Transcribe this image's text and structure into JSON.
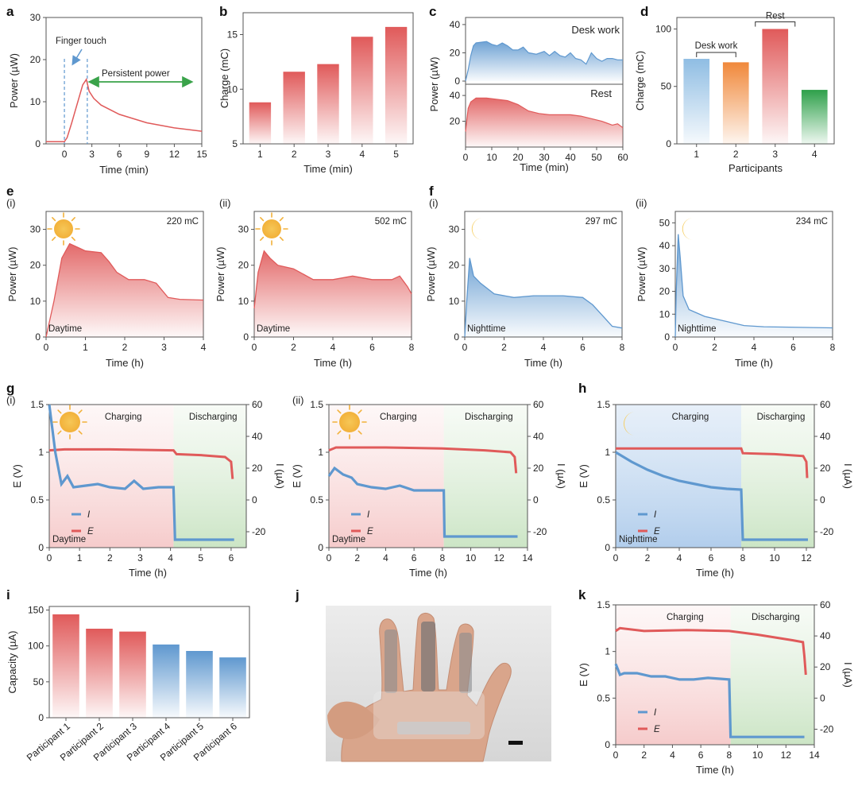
{
  "panels": {
    "a": "a",
    "b": "b",
    "c": "c",
    "d": "d",
    "e": "e",
    "f": "f",
    "g": "g",
    "h": "h",
    "i": "i",
    "j": "j",
    "k": "k",
    "sub_i": "(i)",
    "sub_ii": "(ii)"
  },
  "colors": {
    "red": "#e05a5a",
    "red_light": "#f4c9c9",
    "blue": "#5f98cf",
    "blue_light": "#c6dbef",
    "green_arrow": "#3aa34a",
    "orange": "#f0883a",
    "green_bar": "#2ea04a",
    "charge_bg": "#f8d9d9",
    "discharge_bg": "#d8ebd3",
    "night_bg": "#cfe0f3"
  },
  "chart_data": [
    {
      "id": "a",
      "type": "line",
      "xlabel": "Time (min)",
      "ylabel": "Power (µW)",
      "xlim": [
        -2,
        15
      ],
      "ylim": [
        0,
        30
      ],
      "xticks": [
        0,
        3,
        6,
        9,
        12,
        15
      ],
      "yticks": [
        0,
        10,
        20,
        30
      ],
      "series": [
        {
          "values": [
            [
              -2,
              0.5
            ],
            [
              0,
              0.5
            ],
            [
              0.3,
              1.5
            ],
            [
              0.8,
              5
            ],
            [
              1.2,
              8
            ],
            [
              1.6,
              11
            ],
            [
              2.0,
              14
            ],
            [
              2.4,
              15.3
            ],
            [
              2.7,
              12.5
            ],
            [
              3.2,
              10.8
            ],
            [
              4,
              9.2
            ],
            [
              6,
              7
            ],
            [
              9,
              5
            ],
            [
              12,
              3.8
            ],
            [
              15,
              3
            ]
          ]
        }
      ],
      "annotations": {
        "finger_touch": "Finger touch",
        "persistent_power": "Persistent power"
      },
      "markers_x": [
        0,
        2.5
      ]
    },
    {
      "id": "b",
      "type": "bar",
      "xlabel": "Time (min)",
      "ylabel": "Charge (mC)",
      "categories": [
        "1",
        "2",
        "3",
        "4",
        "5"
      ],
      "values": [
        8.8,
        11.6,
        12.3,
        14.8,
        15.7
      ],
      "ylim": [
        5,
        17
      ],
      "yticks": [
        5,
        10,
        15
      ]
    },
    {
      "id": "c",
      "type": "area",
      "xlabel": "Time (min)",
      "ylabel": "Power (µW)",
      "xlim": [
        0,
        60
      ],
      "xticks": [
        0,
        10,
        20,
        30,
        40,
        50,
        60
      ],
      "top": {
        "label": "Desk work",
        "ylim": [
          0,
          45
        ],
        "yticks": [
          0,
          20,
          40
        ],
        "values": [
          [
            0,
            0
          ],
          [
            1,
            8
          ],
          [
            2,
            18
          ],
          [
            3,
            25
          ],
          [
            4,
            27
          ],
          [
            6,
            27.5
          ],
          [
            8,
            28
          ],
          [
            10,
            26
          ],
          [
            12,
            25
          ],
          [
            14,
            27
          ],
          [
            16,
            25
          ],
          [
            18,
            22
          ],
          [
            20,
            22
          ],
          [
            22,
            24
          ],
          [
            24,
            20
          ],
          [
            27,
            19
          ],
          [
            30,
            21
          ],
          [
            32,
            18
          ],
          [
            34,
            21
          ],
          [
            36,
            18
          ],
          [
            38,
            17
          ],
          [
            40,
            20
          ],
          [
            42,
            16
          ],
          [
            44,
            15
          ],
          [
            46,
            12
          ],
          [
            48,
            20
          ],
          [
            50,
            16
          ],
          [
            52,
            14
          ],
          [
            54,
            16
          ],
          [
            56,
            16
          ],
          [
            58,
            15
          ],
          [
            60,
            15
          ]
        ]
      },
      "bottom": {
        "label": "Rest",
        "ylim": [
          0,
          45
        ],
        "yticks": [
          0,
          20,
          40
        ],
        "values": [
          [
            0,
            12
          ],
          [
            1,
            30
          ],
          [
            2,
            35
          ],
          [
            4,
            38
          ],
          [
            8,
            38
          ],
          [
            12,
            37
          ],
          [
            16,
            36
          ],
          [
            20,
            33
          ],
          [
            24,
            28
          ],
          [
            28,
            26
          ],
          [
            32,
            25
          ],
          [
            36,
            25
          ],
          [
            40,
            25
          ],
          [
            44,
            24
          ],
          [
            48,
            22
          ],
          [
            52,
            20
          ],
          [
            56,
            17
          ],
          [
            58,
            18
          ],
          [
            60,
            15
          ]
        ]
      }
    },
    {
      "id": "d",
      "type": "bar",
      "xlabel": "Participants",
      "ylabel": "Charge (mC)",
      "categories": [
        "1",
        "2",
        "3",
        "4"
      ],
      "values": [
        74,
        71,
        100,
        47
      ],
      "ylim": [
        0,
        110
      ],
      "yticks": [
        0,
        50,
        100
      ],
      "bar_colors": [
        "#9cc7e8",
        "#f0883a",
        "#e05a5a",
        "#2ea04a"
      ],
      "groups": [
        {
          "label": "Desk work",
          "members": [
            0,
            1
          ]
        },
        {
          "label": "Rest",
          "members": [
            2
          ]
        }
      ]
    },
    {
      "id": "e_i",
      "type": "area",
      "xlabel": "Time (h)",
      "ylabel": "Power (µW)",
      "xlim": [
        0,
        4
      ],
      "ylim": [
        0,
        35
      ],
      "xticks": [
        0,
        1,
        2,
        3,
        4
      ],
      "yticks": [
        0,
        10,
        20,
        30
      ],
      "label": "Daytime",
      "total": "220 mC",
      "values": [
        [
          0,
          0
        ],
        [
          0.2,
          10
        ],
        [
          0.4,
          22
        ],
        [
          0.6,
          26
        ],
        [
          0.8,
          25
        ],
        [
          1,
          24
        ],
        [
          1.4,
          23.5
        ],
        [
          1.6,
          21
        ],
        [
          1.8,
          18
        ],
        [
          2.1,
          16
        ],
        [
          2.5,
          16
        ],
        [
          2.8,
          15
        ],
        [
          3.1,
          11
        ],
        [
          3.4,
          10.5
        ],
        [
          4,
          10.3
        ]
      ]
    },
    {
      "id": "e_ii",
      "type": "area",
      "xlabel": "Time (h)",
      "ylabel": "Power (µW)",
      "xlim": [
        0,
        8
      ],
      "ylim": [
        0,
        35
      ],
      "xticks": [
        0,
        2,
        4,
        6,
        8
      ],
      "yticks": [
        0,
        10,
        20,
        30
      ],
      "label": "Daytime",
      "total": "502 mC",
      "values": [
        [
          0,
          8
        ],
        [
          0.2,
          18
        ],
        [
          0.5,
          24
        ],
        [
          0.8,
          22
        ],
        [
          1.2,
          20
        ],
        [
          2,
          19
        ],
        [
          3,
          16
        ],
        [
          4,
          16
        ],
        [
          5,
          17
        ],
        [
          6,
          16
        ],
        [
          7,
          16
        ],
        [
          7.4,
          17
        ],
        [
          7.8,
          14
        ],
        [
          8,
          12
        ]
      ]
    },
    {
      "id": "f_i",
      "type": "area",
      "xlabel": "Time (h)",
      "ylabel": "Power (µW)",
      "xlim": [
        0,
        8
      ],
      "ylim": [
        0,
        35
      ],
      "xticks": [
        0,
        2,
        4,
        6,
        8
      ],
      "yticks": [
        0,
        10,
        20,
        30
      ],
      "label": "Nighttime",
      "total": "297 mC",
      "values": [
        [
          0,
          0
        ],
        [
          0.1,
          10
        ],
        [
          0.25,
          22
        ],
        [
          0.45,
          17
        ],
        [
          0.8,
          15
        ],
        [
          1.5,
          12
        ],
        [
          2.5,
          11
        ],
        [
          3.5,
          11.5
        ],
        [
          5,
          11.5
        ],
        [
          6,
          11
        ],
        [
          6.5,
          9
        ],
        [
          7,
          6
        ],
        [
          7.5,
          3
        ],
        [
          8,
          2.5
        ]
      ]
    },
    {
      "id": "f_ii",
      "type": "area",
      "xlabel": "Time (h)",
      "ylabel": "Power (µW)",
      "xlim": [
        0,
        8
      ],
      "ylim": [
        0,
        55
      ],
      "xticks": [
        0,
        2,
        4,
        6,
        8
      ],
      "yticks": [
        0,
        10,
        20,
        30,
        40,
        50
      ],
      "label": "Nighttime",
      "total": "234 mC",
      "values": [
        [
          0,
          0
        ],
        [
          0.05,
          20
        ],
        [
          0.15,
          45
        ],
        [
          0.25,
          35
        ],
        [
          0.4,
          18
        ],
        [
          0.7,
          12
        ],
        [
          1.5,
          9
        ],
        [
          2.5,
          7
        ],
        [
          3.5,
          5
        ],
        [
          4.5,
          4.5
        ],
        [
          8,
          4
        ]
      ]
    },
    {
      "id": "g_i",
      "type": "line",
      "xlabel": "Time (h)",
      "ylabel_left": "E (V)",
      "ylabel_right": "I (µA)",
      "xlim": [
        0,
        6.5
      ],
      "ylim_left": [
        0,
        1.5
      ],
      "ylim_right": [
        -30,
        60
      ],
      "xticks": [
        0,
        1,
        2,
        3,
        4,
        5,
        6
      ],
      "yticks_left": [
        0,
        0.5,
        1.0,
        1.5
      ],
      "yticks_right": [
        -20,
        0,
        20,
        40,
        60
      ],
      "charge_end": 4.1,
      "label": "Daytime",
      "charging": "Charging",
      "discharging": "Discharging",
      "legend": [
        "I",
        "E"
      ],
      "E": [
        [
          0,
          1.02
        ],
        [
          0.5,
          1.03
        ],
        [
          2,
          1.03
        ],
        [
          4.1,
          1.02
        ],
        [
          4.2,
          0.98
        ],
        [
          5,
          0.97
        ],
        [
          5.8,
          0.95
        ],
        [
          6,
          0.9
        ],
        [
          6.05,
          0.72
        ]
      ],
      "I": [
        [
          0,
          60
        ],
        [
          0.2,
          30
        ],
        [
          0.4,
          10
        ],
        [
          0.6,
          15
        ],
        [
          0.8,
          8
        ],
        [
          1.2,
          9
        ],
        [
          1.6,
          10
        ],
        [
          2,
          8
        ],
        [
          2.5,
          7
        ],
        [
          2.8,
          12
        ],
        [
          3.1,
          7
        ],
        [
          3.6,
          8
        ],
        [
          4.1,
          8
        ],
        [
          4.15,
          -25
        ],
        [
          6.1,
          -25
        ]
      ]
    },
    {
      "id": "g_ii",
      "type": "line",
      "xlabel": "Time (h)",
      "ylabel_left": "E (V)",
      "ylabel_right": "I (µA)",
      "xlim": [
        0,
        14
      ],
      "ylim_left": [
        0,
        1.5
      ],
      "ylim_right": [
        -30,
        60
      ],
      "xticks": [
        0,
        2,
        4,
        6,
        8,
        10,
        12,
        14
      ],
      "yticks_left": [
        0,
        0.5,
        1.0,
        1.5
      ],
      "yticks_right": [
        -20,
        0,
        20,
        40,
        60
      ],
      "charge_end": 8.1,
      "label": "Daytime",
      "charging": "Charging",
      "discharging": "Discharging",
      "legend": [
        "I",
        "E"
      ],
      "E": [
        [
          0,
          1.02
        ],
        [
          0.5,
          1.05
        ],
        [
          4,
          1.05
        ],
        [
          8,
          1.04
        ],
        [
          11,
          1.02
        ],
        [
          12.8,
          1.0
        ],
        [
          13.1,
          0.95
        ],
        [
          13.2,
          0.78
        ]
      ],
      "I": [
        [
          0,
          15
        ],
        [
          0.4,
          20
        ],
        [
          1,
          16
        ],
        [
          1.6,
          14
        ],
        [
          2,
          10
        ],
        [
          3,
          8
        ],
        [
          4,
          7
        ],
        [
          5,
          9
        ],
        [
          6,
          6
        ],
        [
          8.1,
          6
        ],
        [
          8.15,
          -23
        ],
        [
          13.3,
          -23
        ]
      ]
    },
    {
      "id": "h",
      "type": "line",
      "xlabel": "Time (h)",
      "ylabel_left": "E (V)",
      "ylabel_right": "I (µA)",
      "xlim": [
        0,
        12.5
      ],
      "ylim_left": [
        0,
        1.5
      ],
      "ylim_right": [
        -30,
        60
      ],
      "xticks": [
        0,
        2,
        4,
        6,
        8,
        10,
        12
      ],
      "yticks_left": [
        0,
        0.5,
        1.0,
        1.5
      ],
      "yticks_right": [
        -20,
        0,
        20,
        40,
        60
      ],
      "charge_end": 7.9,
      "label": "Nighttime",
      "charging": "Charging",
      "discharging": "Discharging",
      "legend": [
        "I",
        "E"
      ],
      "E": [
        [
          0,
          1.04
        ],
        [
          4,
          1.04
        ],
        [
          7.9,
          1.04
        ],
        [
          8,
          0.99
        ],
        [
          10,
          0.98
        ],
        [
          11.8,
          0.96
        ],
        [
          12,
          0.9
        ],
        [
          12.05,
          0.73
        ]
      ],
      "I": [
        [
          0,
          30
        ],
        [
          1,
          24
        ],
        [
          2,
          19
        ],
        [
          3,
          15
        ],
        [
          4,
          12
        ],
        [
          5,
          10
        ],
        [
          6,
          8
        ],
        [
          7,
          7
        ],
        [
          7.9,
          6.5
        ],
        [
          8,
          -25
        ],
        [
          12.1,
          -25
        ]
      ]
    },
    {
      "id": "i",
      "type": "bar",
      "xlabel": "",
      "ylabel": "Capacity (µA)",
      "categories": [
        "Participant 1",
        "Participant 2",
        "Participant 3",
        "Participant 4",
        "Participant 5",
        "Participant 6"
      ],
      "values": [
        144,
        124,
        120,
        102,
        93,
        84
      ],
      "ylim": [
        0,
        155
      ],
      "yticks": [
        0,
        50,
        100,
        150
      ],
      "bar_colors": [
        "#e05a5a",
        "#e05a5a",
        "#e05a5a",
        "#5f98cf",
        "#5f98cf",
        "#5f98cf"
      ]
    },
    {
      "id": "k",
      "type": "line",
      "xlabel": "Time (h)",
      "ylabel_left": "E (V)",
      "ylabel_right": "I (µA)",
      "xlim": [
        0,
        14
      ],
      "ylim_left": [
        0,
        1.5
      ],
      "ylim_right": [
        -30,
        60
      ],
      "xticks": [
        0,
        2,
        4,
        6,
        8,
        10,
        12,
        14
      ],
      "yticks_left": [
        0,
        0.5,
        1.0,
        1.5
      ],
      "yticks_right": [
        -20,
        0,
        20,
        40,
        60
      ],
      "charge_end": 8.1,
      "charging": "Charging",
      "discharging": "Discharging",
      "legend": [
        "I",
        "E"
      ],
      "E": [
        [
          0,
          1.22
        ],
        [
          0.3,
          1.25
        ],
        [
          2,
          1.22
        ],
        [
          5,
          1.23
        ],
        [
          8,
          1.22
        ],
        [
          10,
          1.18
        ],
        [
          12.5,
          1.12
        ],
        [
          13.2,
          1.1
        ],
        [
          13.3,
          0.95
        ],
        [
          13.4,
          0.75
        ]
      ],
      "I": [
        [
          0,
          22
        ],
        [
          0.3,
          15
        ],
        [
          0.6,
          16
        ],
        [
          1.5,
          16
        ],
        [
          2.5,
          14
        ],
        [
          3.5,
          14
        ],
        [
          4.5,
          12
        ],
        [
          5.5,
          12
        ],
        [
          6.5,
          13
        ],
        [
          8,
          12
        ],
        [
          8.1,
          -25
        ],
        [
          13.3,
          -25
        ]
      ]
    }
  ]
}
